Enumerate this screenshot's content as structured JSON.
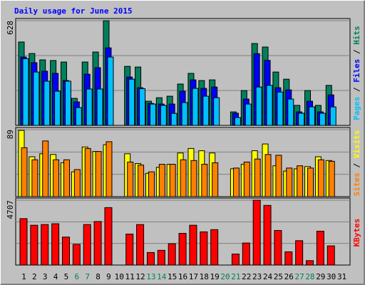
{
  "chart_data": {
    "type": "bar",
    "title": "Daily usage for June 2015",
    "title_color": "#0000ff",
    "categories": [
      "1",
      "2",
      "3",
      "4",
      "5",
      "6",
      "7",
      "8",
      "9",
      "10",
      "11",
      "12",
      "13",
      "14",
      "15",
      "16",
      "17",
      "18",
      "19",
      "20",
      "21",
      "22",
      "23",
      "24",
      "25",
      "26",
      "27",
      "28",
      "29",
      "30",
      "31"
    ],
    "highlight_categories": [
      "6",
      "7",
      "13",
      "14",
      "20",
      "21",
      "27",
      "28"
    ],
    "highlight_color": "#00805c",
    "legend_separator": "/",
    "grid": true,
    "grid_divisions": 3,
    "panels": [
      {
        "ylim": [
          0,
          628
        ],
        "yticks": [
          628
        ],
        "series": [
          2,
          1,
          0
        ]
      },
      {
        "ylim": [
          0,
          89
        ],
        "yticks": [
          89
        ],
        "series": [
          4,
          3
        ]
      },
      {
        "ylim": [
          0,
          4707
        ],
        "yticks": [
          4707
        ],
        "series": [
          5
        ]
      }
    ],
    "series": [
      {
        "name": "Hits",
        "color": "#00805c",
        "panel": 0,
        "values": [
          500,
          431,
          393,
          389,
          380,
          162,
          380,
          440,
          628,
          0,
          354,
          350,
          145,
          166,
          175,
          248,
          312,
          269,
          273,
          0,
          81,
          209,
          491,
          470,
          320,
          277,
          120,
          209,
          120,
          240,
          0
        ]
      },
      {
        "name": "Files",
        "color": "#0000ff",
        "panel": 0,
        "values": [
          410,
          376,
          325,
          312,
          269,
          141,
          307,
          346,
          465,
          0,
          290,
          226,
          132,
          128,
          128,
          205,
          273,
          222,
          230,
          0,
          73,
          158,
          430,
          390,
          226,
          213,
          81,
          145,
          81,
          183,
          0
        ]
      },
      {
        "name": "Pages",
        "color": "#00c0ff",
        "panel": 0,
        "values": [
          400,
          320,
          265,
          205,
          265,
          107,
          218,
          218,
          410,
          0,
          277,
          220,
          128,
          120,
          72,
          137,
          222,
          175,
          166,
          0,
          47,
          128,
          230,
          240,
          200,
          158,
          73,
          111,
          73,
          111,
          0
        ]
      },
      {
        "name": "Visits",
        "color": "#ffff00",
        "panel": 1,
        "values": [
          88,
          53,
          57,
          56,
          45,
          33,
          66,
          60,
          69,
          0,
          57,
          44,
          31,
          39,
          43,
          58,
          64,
          61,
          58,
          0,
          37,
          43,
          61,
          70,
          41,
          34,
          37,
          40,
          53,
          48,
          0
        ]
      },
      {
        "name": "Sites",
        "color": "#ff8000",
        "panel": 1,
        "values": [
          65,
          49,
          74,
          49,
          49,
          36,
          64,
          60,
          73,
          0,
          46,
          42,
          33,
          43,
          43,
          49,
          48,
          43,
          45,
          0,
          38,
          46,
          50,
          56,
          55,
          38,
          41,
          38,
          49,
          47,
          0
        ]
      },
      {
        "name": "KBytes",
        "color": "#ff0000",
        "panel": 2,
        "values": [
          3370,
          2890,
          2940,
          3000,
          2030,
          1500,
          2940,
          3160,
          4170,
          0,
          2250,
          2940,
          910,
          1070,
          1550,
          2300,
          2890,
          2410,
          2570,
          0,
          800,
          1600,
          4707,
          4330,
          2510,
          960,
          1770,
          320,
          2460,
          1390,
          0
        ]
      }
    ]
  }
}
